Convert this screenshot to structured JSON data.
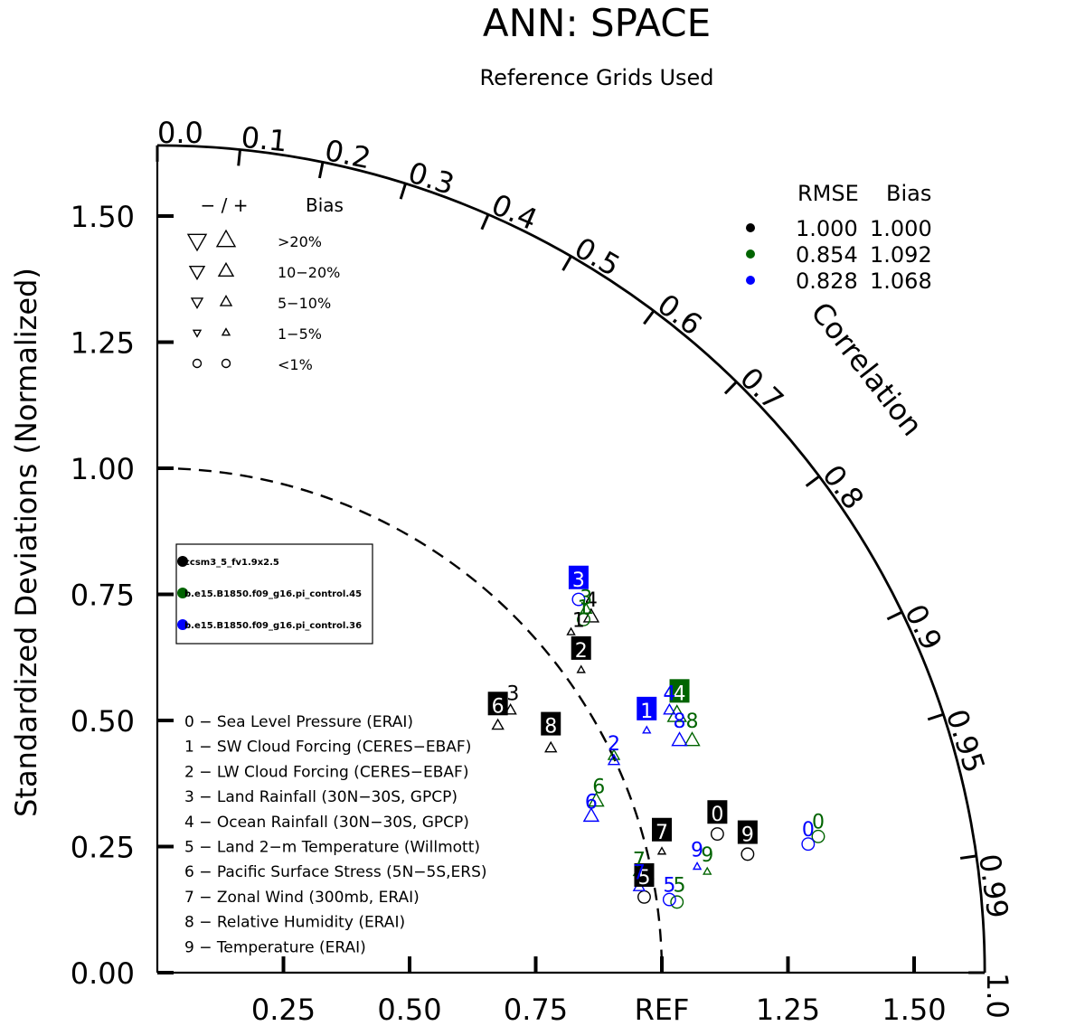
{
  "chart_data": {
    "type": "scatter",
    "subtype": "taylor-diagram",
    "title": "ANN: SPACE",
    "subtitle": "Reference Grids Used",
    "ylabel": "Standardized Deviations (Normalized)",
    "correlation_label": "Correlation",
    "x_tick_labels": [
      "0.25",
      "0.50",
      "0.75",
      "REF",
      "1.25",
      "1.50"
    ],
    "x_tick_values": [
      0.25,
      0.5,
      0.75,
      1.0,
      1.25,
      1.5
    ],
    "y_tick_labels": [
      "0.00",
      "0.25",
      "0.50",
      "0.75",
      "1.00",
      "1.25",
      "1.50"
    ],
    "y_tick_values": [
      0,
      0.25,
      0.5,
      0.75,
      1.0,
      1.25,
      1.5
    ],
    "correlation_ticks": [
      {
        "label": "0.0",
        "value": 0.0
      },
      {
        "label": "0.1",
        "value": 0.1
      },
      {
        "label": "0.2",
        "value": 0.2
      },
      {
        "label": "0.3",
        "value": 0.3
      },
      {
        "label": "0.4",
        "value": 0.4
      },
      {
        "label": "0.5",
        "value": 0.5
      },
      {
        "label": "0.6",
        "value": 0.6
      },
      {
        "label": "0.7",
        "value": 0.7
      },
      {
        "label": "0.8",
        "value": 0.8
      },
      {
        "label": "0.9",
        "value": 0.9
      },
      {
        "label": "0.95",
        "value": 0.95
      },
      {
        "label": "0.99",
        "value": 0.99
      },
      {
        "label": "1.0",
        "value": 1.0
      }
    ],
    "max_std": 1.64,
    "ref_std": 1.0,
    "bias_legend": {
      "header_sign": "− / +",
      "header_bias": "Bias",
      "rows": [
        {
          "label": ">20%",
          "symbol": "triangle",
          "size": 20
        },
        {
          "label": "10−20%",
          "symbol": "triangle",
          "size": 16
        },
        {
          "label": "5−10%",
          "symbol": "triangle",
          "size": 12
        },
        {
          "label": "1−5%",
          "symbol": "triangle",
          "size": 8
        },
        {
          "label": "<1%",
          "symbol": "circle",
          "size": 9
        }
      ]
    },
    "rmse_header": {
      "rmse": "RMSE",
      "bias": "Bias"
    },
    "series": [
      {
        "name": "ccsm3_5_fv1.9x2.5",
        "color": "#000000",
        "rmse": "1.000",
        "bias": "1.000"
      },
      {
        "name": "b.e15.B1850.f09_g16.pi_control.45",
        "color": "#006400",
        "rmse": "0.854",
        "bias": "1.092"
      },
      {
        "name": "b.e15.B1850.f09_g16.pi_control.36",
        "color": "#0000ff",
        "rmse": "0.828",
        "bias": "1.068"
      }
    ],
    "variables": [
      {
        "id": "0",
        "label": "0 − Sea Level Pressure (ERAI)"
      },
      {
        "id": "1",
        "label": "1 − SW Cloud Forcing (CERES−EBAF)"
      },
      {
        "id": "2",
        "label": "2 − LW Cloud Forcing (CERES−EBAF)"
      },
      {
        "id": "3",
        "label": "3 − Land Rainfall (30N−30S, GPCP)"
      },
      {
        "id": "4",
        "label": "4 − Ocean Rainfall (30N−30S, GPCP)"
      },
      {
        "id": "5",
        "label": "5 − Land 2−m Temperature (Willmott)"
      },
      {
        "id": "6",
        "label": "6 − Pacific Surface Stress (5N−5S,ERS)"
      },
      {
        "id": "7",
        "label": "7 − Zonal Wind (300mb, ERAI)"
      },
      {
        "id": "8",
        "label": "8 − Relative Humidity (ERAI)"
      },
      {
        "id": "9",
        "label": "9 − Temperature (ERAI)"
      }
    ],
    "points": [
      {
        "series": 0,
        "var": "0",
        "x": 1.11,
        "y": 0.275,
        "marker": "circle",
        "size": 9
      },
      {
        "series": 0,
        "var": "1",
        "x": 0.82,
        "y": 0.675,
        "marker": "up",
        "size": 8
      },
      {
        "series": 0,
        "var": "2",
        "x": 0.84,
        "y": 0.6,
        "marker": "up",
        "size": 8
      },
      {
        "series": 0,
        "var": "3",
        "x": 0.7,
        "y": 0.52,
        "marker": "up",
        "size": 12
      },
      {
        "series": 0,
        "var": "4",
        "x": 0.86,
        "y": 0.705,
        "marker": "up",
        "size": 16
      },
      {
        "series": 0,
        "var": "5",
        "x": 0.965,
        "y": 0.15,
        "marker": "circle",
        "size": 9
      },
      {
        "series": 0,
        "var": "6",
        "x": 0.675,
        "y": 0.49,
        "marker": "up",
        "size": 12
      },
      {
        "series": 0,
        "var": "7",
        "x": 1.0,
        "y": 0.24,
        "marker": "up",
        "size": 8
      },
      {
        "series": 0,
        "var": "8",
        "x": 0.78,
        "y": 0.445,
        "marker": "up",
        "size": 12
      },
      {
        "series": 0,
        "var": "9",
        "x": 1.17,
        "y": 0.235,
        "marker": "circle",
        "size": 9
      },
      {
        "series": 1,
        "var": "0",
        "x": 1.31,
        "y": 0.27,
        "marker": "circle",
        "size": 9
      },
      {
        "series": 1,
        "var": "1",
        "x": 0.845,
        "y": 0.7,
        "marker": "circle",
        "size": 9
      },
      {
        "series": 1,
        "var": "2",
        "x": 0.905,
        "y": 0.43,
        "marker": "up",
        "size": 12
      },
      {
        "series": 1,
        "var": "3",
        "x": 0.85,
        "y": 0.72,
        "marker": "up",
        "size": 12
      },
      {
        "series": 1,
        "var": "4",
        "x": 1.03,
        "y": 0.51,
        "marker": "up",
        "size": 20
      },
      {
        "series": 1,
        "var": "5",
        "x": 1.03,
        "y": 0.14,
        "marker": "circle",
        "size": 9
      },
      {
        "series": 1,
        "var": "6",
        "x": 0.87,
        "y": 0.34,
        "marker": "up",
        "size": 16
      },
      {
        "series": 1,
        "var": "7",
        "x": 0.955,
        "y": 0.2,
        "marker": "up",
        "size": 12
      },
      {
        "series": 1,
        "var": "8",
        "x": 1.06,
        "y": 0.46,
        "marker": "up",
        "size": 16
      },
      {
        "series": 1,
        "var": "9",
        "x": 1.09,
        "y": 0.2,
        "marker": "up",
        "size": 8
      },
      {
        "series": 2,
        "var": "0",
        "x": 1.29,
        "y": 0.255,
        "marker": "circle",
        "size": 9
      },
      {
        "series": 2,
        "var": "1",
        "x": 0.97,
        "y": 0.48,
        "marker": "up",
        "size": 8
      },
      {
        "series": 2,
        "var": "2",
        "x": 0.905,
        "y": 0.42,
        "marker": "up",
        "size": 12
      },
      {
        "series": 2,
        "var": "3",
        "x": 0.835,
        "y": 0.74,
        "marker": "circle",
        "size": 9
      },
      {
        "series": 2,
        "var": "4",
        "x": 1.015,
        "y": 0.52,
        "marker": "up",
        "size": 12
      },
      {
        "series": 2,
        "var": "5",
        "x": 1.015,
        "y": 0.145,
        "marker": "circle",
        "size": 9
      },
      {
        "series": 2,
        "var": "6",
        "x": 0.86,
        "y": 0.31,
        "marker": "up",
        "size": 16
      },
      {
        "series": 2,
        "var": "7",
        "x": 0.955,
        "y": 0.17,
        "marker": "up",
        "size": 12
      },
      {
        "series": 2,
        "var": "8",
        "x": 1.035,
        "y": 0.46,
        "marker": "up",
        "size": 16
      },
      {
        "series": 2,
        "var": "9",
        "x": 1.07,
        "y": 0.21,
        "marker": "up",
        "size": 8
      }
    ],
    "point_labels": [
      {
        "series": 0,
        "var": "0",
        "x": 1.11,
        "y": 0.315,
        "box": true
      },
      {
        "series": 0,
        "var": "1",
        "x": 0.835,
        "y": 0.7,
        "box": false
      },
      {
        "series": 0,
        "var": "2",
        "x": 0.84,
        "y": 0.64,
        "box": true
      },
      {
        "series": 0,
        "var": "3",
        "x": 0.705,
        "y": 0.555,
        "box": false
      },
      {
        "series": 0,
        "var": "4",
        "x": 0.86,
        "y": 0.74,
        "box": false
      },
      {
        "series": 0,
        "var": "5",
        "x": 0.965,
        "y": 0.19,
        "box": true
      },
      {
        "series": 0,
        "var": "6",
        "x": 0.675,
        "y": 0.53,
        "box": true
      },
      {
        "series": 0,
        "var": "7",
        "x": 1.0,
        "y": 0.28,
        "box": true
      },
      {
        "series": 0,
        "var": "8",
        "x": 0.78,
        "y": 0.49,
        "box": true
      },
      {
        "series": 0,
        "var": "9",
        "x": 1.17,
        "y": 0.275,
        "box": true
      },
      {
        "series": 1,
        "var": "0",
        "x": 1.31,
        "y": 0.3,
        "box": false
      },
      {
        "series": 1,
        "var": "1",
        "x": 0.845,
        "y": 0.725,
        "box": false
      },
      {
        "series": 1,
        "var": "3",
        "x": 0.85,
        "y": 0.745,
        "box": false
      },
      {
        "series": 1,
        "var": "4",
        "x": 1.035,
        "y": 0.555,
        "box": true
      },
      {
        "series": 1,
        "var": "5",
        "x": 1.035,
        "y": 0.175,
        "box": false
      },
      {
        "series": 1,
        "var": "6",
        "x": 0.875,
        "y": 0.37,
        "box": false
      },
      {
        "series": 1,
        "var": "7",
        "x": 0.955,
        "y": 0.225,
        "box": false
      },
      {
        "series": 1,
        "var": "8",
        "x": 1.06,
        "y": 0.5,
        "box": false
      },
      {
        "series": 1,
        "var": "9",
        "x": 1.09,
        "y": 0.235,
        "box": false
      },
      {
        "series": 2,
        "var": "0",
        "x": 1.29,
        "y": 0.285,
        "box": false
      },
      {
        "series": 2,
        "var": "1",
        "x": 0.97,
        "y": 0.52,
        "box": true
      },
      {
        "series": 2,
        "var": "2",
        "x": 0.905,
        "y": 0.455,
        "box": false
      },
      {
        "series": 2,
        "var": "3",
        "x": 0.835,
        "y": 0.78,
        "box": true
      },
      {
        "series": 2,
        "var": "4",
        "x": 1.015,
        "y": 0.555,
        "box": false
      },
      {
        "series": 2,
        "var": "5",
        "x": 1.015,
        "y": 0.175,
        "box": false
      },
      {
        "series": 2,
        "var": "6",
        "x": 0.86,
        "y": 0.34,
        "box": false
      },
      {
        "series": 2,
        "var": "7",
        "x": 0.955,
        "y": 0.2,
        "box": false
      },
      {
        "series": 2,
        "var": "8",
        "x": 1.035,
        "y": 0.5,
        "box": false
      },
      {
        "series": 2,
        "var": "9",
        "x": 1.07,
        "y": 0.245,
        "box": false
      }
    ]
  }
}
